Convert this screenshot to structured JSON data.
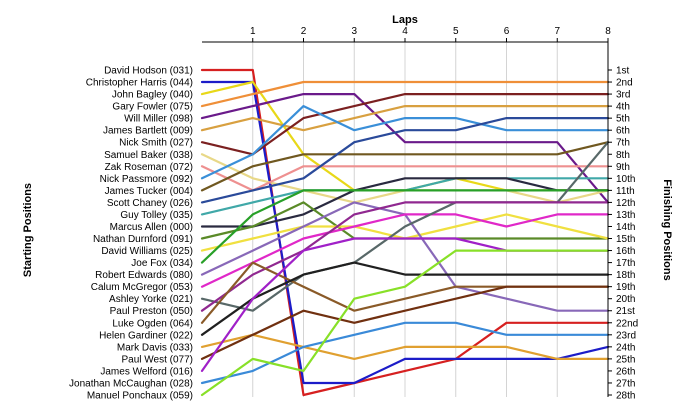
{
  "chart_data": {
    "type": "line",
    "title": "",
    "xlabel": "Laps",
    "ylabel_left": "Starting Positions",
    "ylabel_right": "Finishing Positions",
    "x_ticks": [
      "1",
      "2",
      "3",
      "4",
      "5",
      "6",
      "7",
      "8"
    ],
    "x_range": [
      0,
      8
    ],
    "grid": "vertical",
    "starting_labels": [
      "David Hodson (031)",
      "Christopher Harris (044)",
      "John Bagley (040)",
      "Gary Fowler (075)",
      "Will Miller (098)",
      "James Bartlett (009)",
      "Nick Smith (027)",
      "Samuel Baker (038)",
      "Zak Roseman (072)",
      "Nick Passmore (092)",
      "James Tucker (004)",
      "Scott Chaney (026)",
      "Guy Tolley (035)",
      "Marcus Allen (000)",
      "Nathan Durnford (091)",
      "David Williams (025)",
      "Joe Fox (034)",
      "Robert Edwards (080)",
      "Calum McGregor (053)",
      "Ashley Yorke (021)",
      "Paul Preston (050)",
      "Luke Ogden (064)",
      "Helen Gardiner (022)",
      "Mark Davis (033)",
      "Paul West (077)",
      "James Welford (016)",
      "Jonathan McCaughan (028)",
      "Manuel Ponchaux (059)"
    ],
    "finishing_labels": [
      "1st",
      "2nd",
      "3rd",
      "4th",
      "5th",
      "6th",
      "7th",
      "8th",
      "9th",
      "10th",
      "11th",
      "12th",
      "13th",
      "14th",
      "15th",
      "16th",
      "17th",
      "18th",
      "19th",
      "20th",
      "21st",
      "22nd",
      "23rd",
      "24th",
      "25th",
      "26th",
      "27th",
      "28th"
    ],
    "series": [
      {
        "color": "#d62020",
        "positions": [
          1,
          1,
          28,
          27,
          26,
          25,
          22,
          22,
          22
        ]
      },
      {
        "color": "#1c1cc8",
        "positions": [
          2,
          2,
          27,
          27,
          25,
          25,
          25,
          25,
          24
        ]
      },
      {
        "color": "#e8d818",
        "positions": [
          3,
          2,
          8,
          11,
          11,
          10,
          11,
          11,
          11
        ]
      },
      {
        "color": "#ef8f38",
        "positions": [
          4,
          3,
          2,
          2,
          2,
          2,
          2,
          2,
          2
        ]
      },
      {
        "color": "#6a1a8a",
        "positions": [
          5,
          4,
          3,
          3,
          7,
          7,
          7,
          7,
          12
        ]
      },
      {
        "color": "#d8a040",
        "positions": [
          6,
          5,
          6,
          5,
          4,
          4,
          4,
          4,
          4
        ]
      },
      {
        "color": "#7b2020",
        "positions": [
          7,
          8,
          5,
          4,
          3,
          3,
          3,
          3,
          3
        ]
      },
      {
        "color": "#e8d888",
        "positions": [
          8,
          10,
          11,
          12,
          11,
          11,
          11,
          12,
          11
        ]
      },
      {
        "color": "#ee9090",
        "positions": [
          9,
          11,
          9,
          9,
          9,
          9,
          9,
          9,
          9
        ]
      },
      {
        "color": "#3a8fd8",
        "positions": [
          10,
          8,
          4,
          6,
          5,
          5,
          6,
          6,
          6
        ]
      },
      {
        "color": "#705820",
        "positions": [
          11,
          9,
          8,
          8,
          8,
          8,
          8,
          8,
          7
        ]
      },
      {
        "color": "#2a4a9a",
        "positions": [
          12,
          11,
          10,
          7,
          6,
          6,
          5,
          5,
          5
        ]
      },
      {
        "color": "#40a8a8",
        "positions": [
          13,
          12,
          11,
          11,
          11,
          10,
          10,
          10,
          10
        ]
      },
      {
        "color": "#2a2a40",
        "positions": [
          14,
          14,
          13,
          11,
          10,
          10,
          10,
          11,
          11
        ]
      },
      {
        "color": "#5a8a28",
        "positions": [
          15,
          14,
          12,
          15,
          15,
          15,
          15,
          15,
          15
        ]
      },
      {
        "color": "#f0e040",
        "positions": [
          16,
          15,
          14,
          14,
          15,
          14,
          13,
          14,
          15
        ]
      },
      {
        "color": "#28a028",
        "positions": [
          17,
          13,
          11,
          11,
          11,
          11,
          11,
          11,
          11
        ]
      },
      {
        "color": "#8868b8",
        "positions": [
          18,
          16,
          14,
          12,
          13,
          19,
          20,
          21,
          21
        ]
      },
      {
        "color": "#e028c8",
        "positions": [
          19,
          17,
          15,
          14,
          13,
          13,
          14,
          13,
          13
        ]
      },
      {
        "color": "#586868",
        "positions": [
          20,
          21,
          18,
          17,
          14,
          12,
          12,
          12,
          7
        ]
      },
      {
        "color": "#902890",
        "positions": [
          21,
          18,
          16,
          13,
          12,
          12,
          12,
          12,
          12
        ]
      },
      {
        "color": "#8a5a28",
        "positions": [
          22,
          17,
          19,
          21,
          20,
          19,
          19,
          19,
          19
        ]
      },
      {
        "color": "#202020",
        "positions": [
          23,
          20,
          18,
          17,
          18,
          18,
          18,
          18,
          18
        ]
      },
      {
        "color": "#e0a030",
        "positions": [
          24,
          23,
          24,
          25,
          24,
          24,
          24,
          25,
          25
        ]
      },
      {
        "color": "#703010",
        "positions": [
          25,
          23,
          21,
          22,
          21,
          20,
          19,
          19,
          19
        ]
      },
      {
        "color": "#a020c8",
        "positions": [
          26,
          20,
          16,
          15,
          15,
          15,
          16,
          16,
          16
        ]
      },
      {
        "color": "#3a8ad8",
        "positions": [
          27,
          26,
          24,
          23,
          22,
          22,
          23,
          23,
          23
        ]
      },
      {
        "color": "#88e028",
        "positions": [
          28,
          25,
          26,
          20,
          19,
          16,
          16,
          16,
          16
        ]
      }
    ]
  }
}
